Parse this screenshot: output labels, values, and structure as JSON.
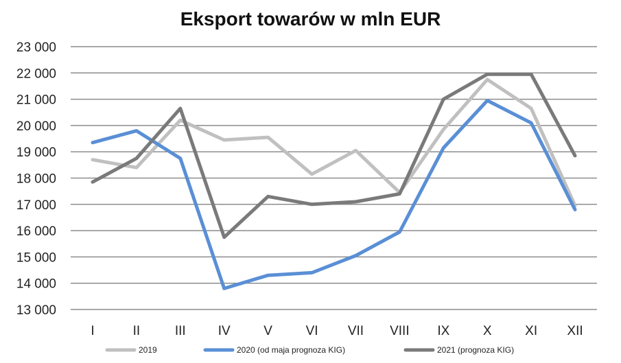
{
  "chart_data": {
    "type": "line",
    "title": "Eksport towarów w mln EUR",
    "xlabel": "",
    "ylabel": "",
    "categories": [
      "I",
      "II",
      "III",
      "IV",
      "V",
      "VI",
      "VII",
      "VIII",
      "IX",
      "X",
      "XI",
      "XII"
    ],
    "ylim": [
      13000,
      23000
    ],
    "yticks": [
      13000,
      14000,
      15000,
      16000,
      17000,
      18000,
      19000,
      20000,
      21000,
      22000,
      23000
    ],
    "ytick_labels": [
      "13 000",
      "14 000",
      "15 000",
      "16 000",
      "17 000",
      "18 000",
      "19 000",
      "20 000",
      "21 000",
      "22 000",
      "23 000"
    ],
    "grid": true,
    "legend_position": "bottom",
    "series": [
      {
        "name": "2019",
        "color": "#c0c0c0",
        "values": [
          18700,
          18400,
          20200,
          19450,
          19550,
          18150,
          19050,
          17450,
          19850,
          21750,
          20650,
          16950
        ]
      },
      {
        "name": "2020 (od maja prognoza KIG)",
        "color": "#5a8fd6",
        "values": [
          19350,
          19800,
          18750,
          13800,
          14300,
          14400,
          15050,
          15950,
          19150,
          20950,
          20100,
          16800
        ]
      },
      {
        "name": "2021 (prognoza KIG)",
        "color": "#7a7a7a",
        "values": [
          17850,
          18750,
          20650,
          15750,
          17300,
          17000,
          17100,
          17400,
          21000,
          21950,
          21950,
          18850
        ]
      }
    ]
  }
}
